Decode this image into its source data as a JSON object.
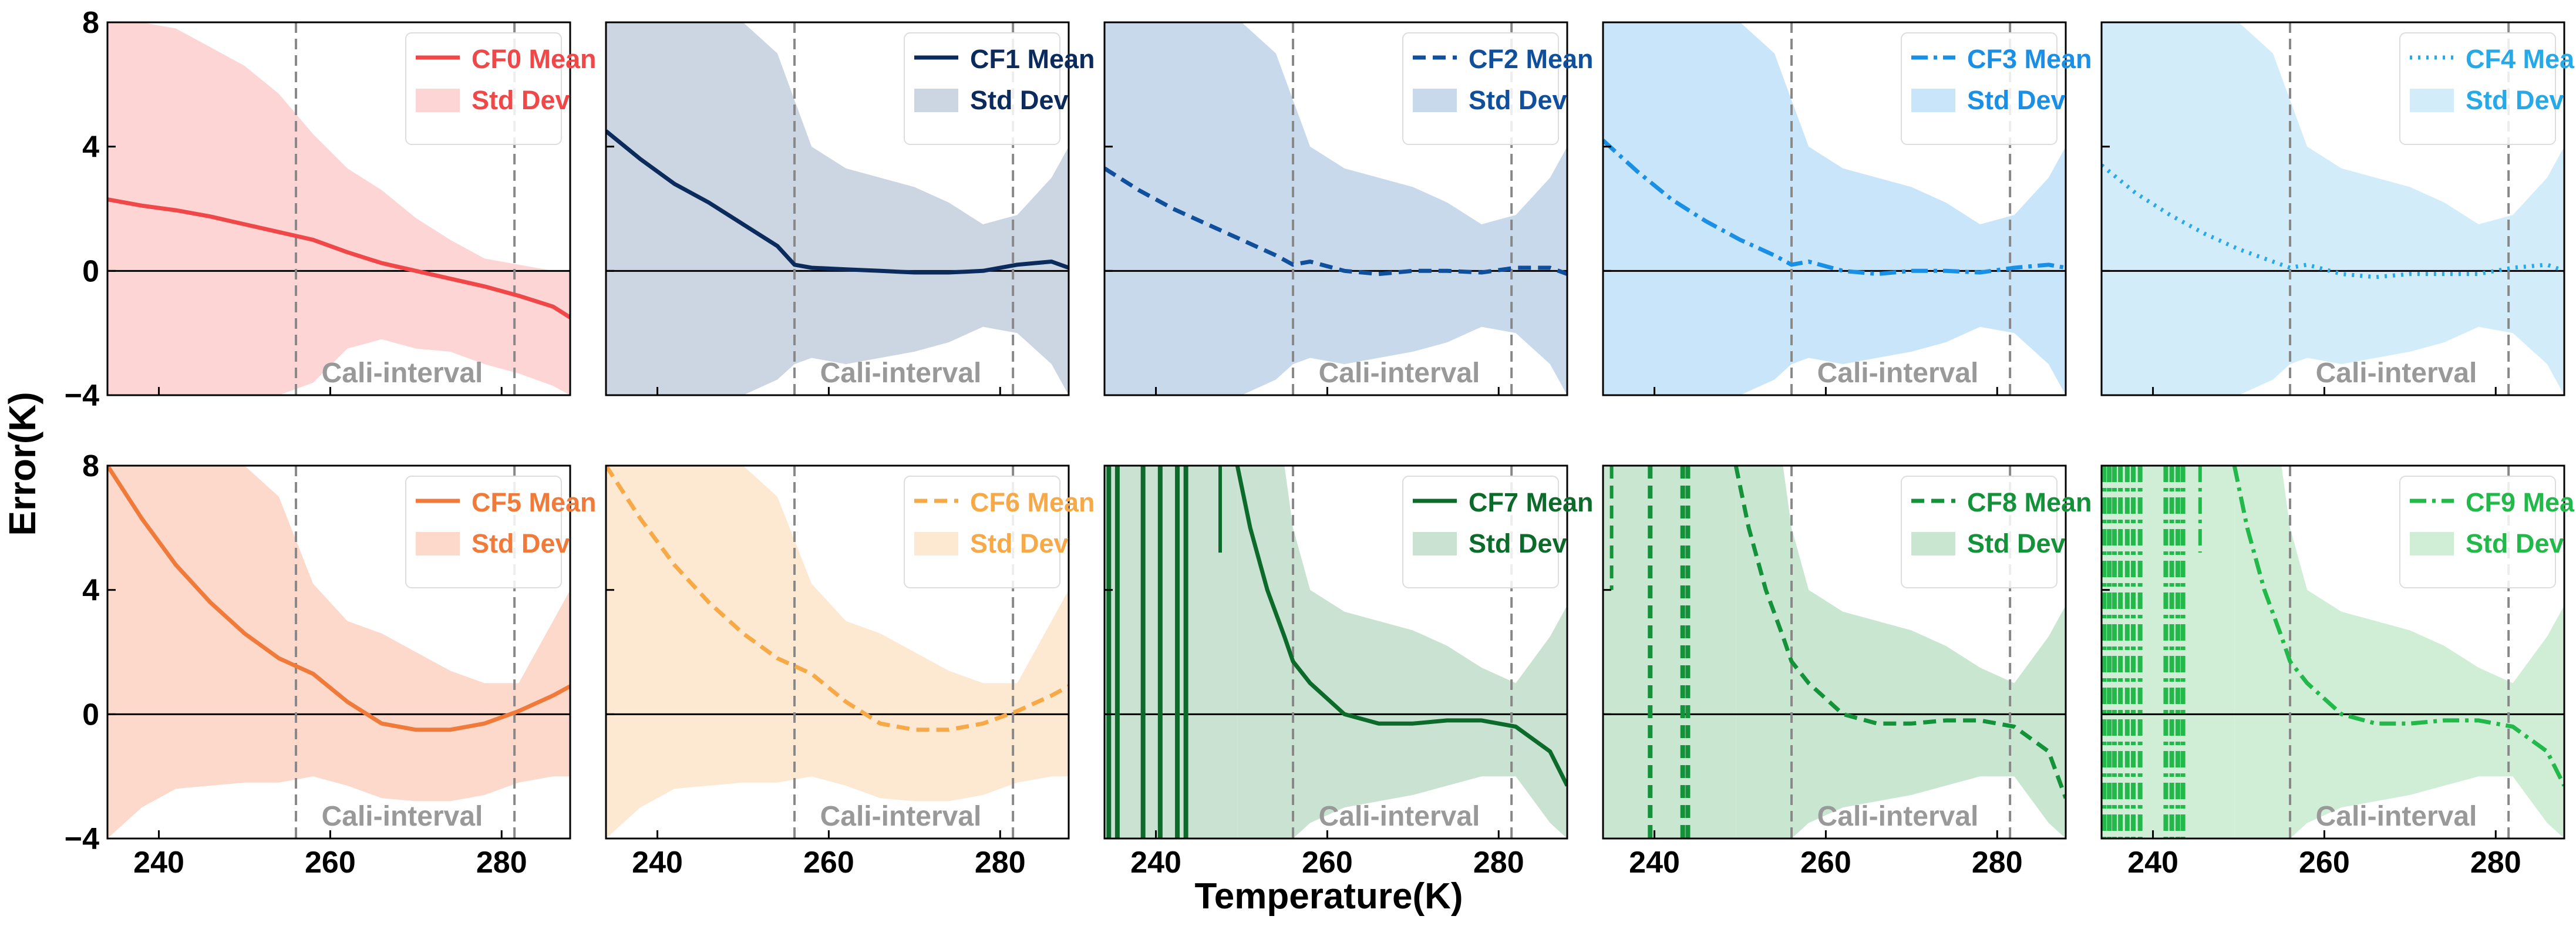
{
  "figure": {
    "ylabel": "Error(K)",
    "xlabel": "Temperature(K)",
    "shared_annotation": "Cali-interval",
    "x_ticks": [
      240,
      260,
      280
    ],
    "y_ticks": [
      -4,
      0,
      4,
      8
    ],
    "y_tick_labels": [
      "−4",
      "0",
      "4",
      "8"
    ],
    "calibration_interval": [
      256,
      281.5
    ]
  },
  "chart_data": [
    {
      "type": "line",
      "panel": "CF0",
      "color": "#f04848",
      "fill": "#fdd5d5",
      "dash": "solid",
      "legend": {
        "mean": "CF0 Mean",
        "std": "Std Dev"
      },
      "annotation": "Cali-interval",
      "xlim": [
        234,
        288
      ],
      "ylim": [
        -4,
        8
      ],
      "x": [
        234,
        238,
        242,
        246,
        250,
        254,
        258,
        262,
        266,
        270,
        274,
        278,
        282,
        286,
        288
      ],
      "mean": [
        2.3,
        2.1,
        1.95,
        1.75,
        1.5,
        1.25,
        1.0,
        0.6,
        0.25,
        0.0,
        -0.25,
        -0.5,
        -0.8,
        -1.15,
        -1.5
      ],
      "upper": [
        8.0,
        8.0,
        7.8,
        7.2,
        6.6,
        5.7,
        4.4,
        3.3,
        2.6,
        1.7,
        1.0,
        0.4,
        0.2,
        0.0,
        0.0
      ],
      "lower": [
        -4.0,
        -4.0,
        -4.0,
        -4.0,
        -4.0,
        -4.0,
        -3.6,
        -2.5,
        -2.2,
        -2.5,
        -2.6,
        -3.0,
        -3.3,
        -3.7,
        -4.0
      ]
    },
    {
      "type": "line",
      "panel": "CF1",
      "color": "#0b2b5c",
      "fill": "#ccd6e2",
      "dash": "solid",
      "legend": {
        "mean": "CF1 Mean",
        "std": "Std Dev"
      },
      "annotation": "Cali-interval",
      "xlim": [
        234,
        288
      ],
      "ylim": [
        -4,
        8
      ],
      "x": [
        234,
        238,
        242,
        246,
        250,
        254,
        256,
        258,
        262,
        266,
        270,
        274,
        278,
        282,
        286,
        288
      ],
      "mean": [
        4.5,
        3.6,
        2.8,
        2.2,
        1.5,
        0.8,
        0.2,
        0.1,
        0.05,
        0.0,
        -0.05,
        -0.05,
        0.0,
        0.2,
        0.3,
        0.1
      ],
      "upper": [
        8.0,
        8.0,
        8.0,
        8.0,
        8.0,
        7.0,
        5.5,
        4.0,
        3.3,
        3.0,
        2.7,
        2.2,
        1.5,
        1.8,
        3.0,
        4.0
      ],
      "lower": [
        -4.0,
        -4.0,
        -4.0,
        -4.0,
        -4.0,
        -3.5,
        -3.0,
        -2.8,
        -3.0,
        -2.8,
        -2.6,
        -2.3,
        -1.8,
        -2.0,
        -3.0,
        -4.0
      ]
    },
    {
      "type": "line",
      "panel": "CF2",
      "color": "#104f9c",
      "fill": "#c8d9ec",
      "dash": "22,12",
      "legend": {
        "mean": "CF2 Mean",
        "std": "Std Dev"
      },
      "annotation": "Cali-interval",
      "xlim": [
        234,
        288
      ],
      "ylim": [
        -4,
        8
      ],
      "x": [
        234,
        238,
        242,
        246,
        250,
        254,
        256,
        258,
        262,
        266,
        270,
        274,
        278,
        282,
        286,
        288
      ],
      "mean": [
        3.3,
        2.6,
        2.0,
        1.5,
        1.0,
        0.5,
        0.2,
        0.3,
        0.0,
        -0.1,
        0.0,
        0.0,
        -0.05,
        0.1,
        0.1,
        -0.1
      ],
      "upper": [
        8.0,
        8.0,
        8.0,
        8.0,
        8.0,
        7.0,
        5.5,
        4.0,
        3.3,
        3.0,
        2.7,
        2.2,
        1.5,
        1.8,
        3.0,
        4.0
      ],
      "lower": [
        -4.0,
        -4.0,
        -4.0,
        -4.0,
        -4.0,
        -3.5,
        -3.0,
        -2.8,
        -3.0,
        -2.8,
        -2.6,
        -2.3,
        -1.8,
        -2.0,
        -3.0,
        -4.0
      ]
    },
    {
      "type": "line",
      "panel": "CF3",
      "color": "#1a8fe6",
      "fill": "#c9e5fa",
      "dash": "28,10,6,10",
      "legend": {
        "mean": "CF3 Mean",
        "std": "Std Dev"
      },
      "annotation": "Cali-interval",
      "xlim": [
        234,
        288
      ],
      "ylim": [
        -4,
        8
      ],
      "x": [
        234,
        238,
        242,
        246,
        250,
        254,
        256,
        258,
        262,
        266,
        270,
        274,
        278,
        282,
        286,
        288
      ],
      "mean": [
        4.2,
        3.2,
        2.3,
        1.6,
        1.0,
        0.5,
        0.2,
        0.3,
        0.0,
        -0.1,
        0.0,
        0.0,
        -0.05,
        0.1,
        0.2,
        0.1
      ],
      "upper": [
        8.0,
        8.0,
        8.0,
        8.0,
        8.0,
        7.0,
        5.5,
        4.0,
        3.3,
        3.0,
        2.7,
        2.2,
        1.5,
        1.8,
        3.0,
        4.0
      ],
      "lower": [
        -4.0,
        -4.0,
        -4.0,
        -4.0,
        -4.0,
        -3.5,
        -3.0,
        -2.8,
        -3.0,
        -2.8,
        -2.6,
        -2.3,
        -1.8,
        -2.0,
        -3.0,
        -4.0
      ]
    },
    {
      "type": "line",
      "panel": "CF4",
      "color": "#27a9e8",
      "fill": "#d3ecfa",
      "dash": "4,10",
      "legend": {
        "mean": "CF4 Mean",
        "std": "Std Dev"
      },
      "annotation": "Cali-interval",
      "xlim": [
        234,
        288
      ],
      "ylim": [
        -4,
        8
      ],
      "x": [
        234,
        238,
        242,
        246,
        250,
        254,
        256,
        258,
        262,
        266,
        270,
        274,
        278,
        282,
        286,
        288
      ],
      "mean": [
        3.4,
        2.5,
        1.8,
        1.2,
        0.7,
        0.3,
        0.1,
        0.2,
        -0.1,
        -0.2,
        -0.1,
        -0.1,
        -0.1,
        0.1,
        0.2,
        0.0
      ],
      "upper": [
        8.0,
        8.0,
        8.0,
        8.0,
        8.0,
        7.0,
        5.5,
        4.0,
        3.3,
        3.0,
        2.7,
        2.2,
        1.5,
        1.8,
        3.0,
        4.0
      ],
      "lower": [
        -4.0,
        -4.0,
        -4.0,
        -4.0,
        -4.0,
        -3.5,
        -3.0,
        -2.8,
        -3.0,
        -2.8,
        -2.6,
        -2.3,
        -1.8,
        -2.0,
        -3.0,
        -4.0
      ]
    },
    {
      "type": "line",
      "panel": "CF5",
      "color": "#f07a3a",
      "fill": "#fdd9cc",
      "dash": "solid",
      "legend": {
        "mean": "CF5 Mean",
        "std": "Std Dev"
      },
      "annotation": "Cali-interval",
      "xlim": [
        234,
        288
      ],
      "ylim": [
        -4,
        8
      ],
      "x": [
        234,
        238,
        242,
        246,
        250,
        254,
        258,
        262,
        266,
        270,
        274,
        278,
        282,
        286,
        288
      ],
      "mean": [
        8.0,
        6.3,
        4.8,
        3.6,
        2.6,
        1.8,
        1.3,
        0.4,
        -0.3,
        -0.5,
        -0.5,
        -0.3,
        0.1,
        0.6,
        0.9
      ],
      "upper": [
        8.0,
        8.0,
        8.0,
        8.0,
        8.0,
        7.0,
        4.2,
        3.0,
        2.6,
        2.0,
        1.4,
        1.0,
        1.0,
        3.0,
        4.0
      ],
      "lower": [
        -4.0,
        -3.0,
        -2.4,
        -2.3,
        -2.2,
        -2.2,
        -2.0,
        -2.3,
        -2.7,
        -2.8,
        -2.8,
        -2.6,
        -2.2,
        -2.0,
        -2.0
      ]
    },
    {
      "type": "line",
      "panel": "CF6",
      "color": "#f7a947",
      "fill": "#fde8d2",
      "dash": "22,12",
      "legend": {
        "mean": "CF6 Mean",
        "std": "Std Dev"
      },
      "annotation": "Cali-interval",
      "xlim": [
        234,
        288
      ],
      "ylim": [
        -4,
        8
      ],
      "x": [
        234,
        238,
        242,
        246,
        250,
        254,
        258,
        262,
        266,
        270,
        274,
        278,
        282,
        286,
        288
      ],
      "mean": [
        8.0,
        6.3,
        4.8,
        3.6,
        2.6,
        1.8,
        1.3,
        0.4,
        -0.3,
        -0.5,
        -0.5,
        -0.3,
        0.1,
        0.6,
        0.9
      ],
      "upper": [
        8.0,
        8.0,
        8.0,
        8.0,
        8.0,
        7.0,
        4.2,
        3.0,
        2.6,
        2.0,
        1.4,
        1.0,
        1.0,
        3.0,
        4.0
      ],
      "lower": [
        -4.0,
        -3.0,
        -2.4,
        -2.3,
        -2.2,
        -2.2,
        -2.0,
        -2.3,
        -2.7,
        -2.8,
        -2.8,
        -2.6,
        -2.2,
        -2.0,
        -2.0
      ]
    },
    {
      "type": "line",
      "panel": "CF7",
      "color": "#0c6b2a",
      "fill": "#c9e2d1",
      "dash": "solid",
      "legend": {
        "mean": "CF7 Mean",
        "std": "Std Dev"
      },
      "annotation": "Cali-interval",
      "xlim": [
        234,
        288
      ],
      "ylim": [
        -4,
        8
      ],
      "spikes": [
        234.5,
        235.5,
        238.5,
        240.5,
        242.5,
        243.5
      ],
      "short_spike": {
        "x": 247.5,
        "top": 8.0,
        "bottom": 5.2
      },
      "x": [
        249.5,
        251,
        253,
        255,
        256,
        258,
        262,
        266,
        270,
        274,
        278,
        282,
        286,
        288
      ],
      "mean": [
        8.0,
        6.0,
        4.0,
        2.5,
        1.7,
        1.0,
        0.0,
        -0.3,
        -0.3,
        -0.2,
        -0.2,
        -0.4,
        -1.2,
        -2.3
      ],
      "upper": [
        8.0,
        8.0,
        8.0,
        8.0,
        6.0,
        4.0,
        3.3,
        3.0,
        2.7,
        2.2,
        1.5,
        1.0,
        2.5,
        3.5
      ],
      "lower": [
        -4.0,
        -4.0,
        -4.0,
        -4.0,
        -4.0,
        -3.5,
        -3.0,
        -2.8,
        -2.6,
        -2.3,
        -2.0,
        -2.0,
        -3.5,
        -4.0
      ]
    },
    {
      "type": "line",
      "panel": "CF8",
      "color": "#13923a",
      "fill": "#c9e6d0",
      "dash": "22,12",
      "legend": {
        "mean": "CF8 Mean",
        "std": "Std Dev"
      },
      "annotation": "Cali-interval",
      "xlim": [
        234,
        288
      ],
      "ylim": [
        -4,
        8
      ],
      "spikes": [
        239.5,
        243.3,
        243.9
      ],
      "short_spike": {
        "x": 235.0,
        "top": 8.0,
        "bottom": 4.0
      },
      "x": [
        249.5,
        251,
        253,
        255,
        256,
        258,
        262,
        266,
        270,
        274,
        278,
        282,
        286,
        288
      ],
      "mean": [
        8.0,
        6.0,
        4.0,
        2.5,
        1.7,
        1.0,
        0.0,
        -0.3,
        -0.3,
        -0.2,
        -0.2,
        -0.4,
        -1.2,
        -2.7
      ],
      "upper": [
        8.0,
        8.0,
        8.0,
        8.0,
        6.0,
        4.0,
        3.3,
        3.0,
        2.7,
        2.2,
        1.5,
        1.0,
        2.5,
        3.5
      ],
      "lower": [
        -4.0,
        -4.0,
        -4.0,
        -4.0,
        -4.0,
        -3.5,
        -3.0,
        -2.8,
        -2.6,
        -2.3,
        -2.0,
        -2.0,
        -3.5,
        -4.0
      ]
    },
    {
      "type": "line",
      "panel": "CF9",
      "color": "#22b84a",
      "fill": "#d0eed6",
      "dash": "28,10,6,10",
      "legend": {
        "mean": "CF9 Mean",
        "std": "Std Dev"
      },
      "annotation": "Cali-interval",
      "xlim": [
        234,
        288
      ],
      "ylim": [
        -4,
        8
      ],
      "spikes": [
        234.3,
        234.9,
        235.5,
        236.2,
        237.0,
        237.7,
        238.5,
        241.5,
        242.2,
        242.9,
        243.5
      ],
      "short_spike": {
        "x": 245.5,
        "top": 8.0,
        "bottom": 5.2
      },
      "x": [
        249.5,
        251,
        253,
        255,
        256,
        258,
        262,
        266,
        270,
        274,
        278,
        282,
        286,
        288
      ],
      "mean": [
        8.0,
        6.0,
        4.0,
        2.5,
        1.7,
        1.0,
        0.0,
        -0.3,
        -0.3,
        -0.2,
        -0.2,
        -0.4,
        -1.2,
        -2.3
      ],
      "upper": [
        8.0,
        8.0,
        8.0,
        8.0,
        6.0,
        4.0,
        3.3,
        3.0,
        2.7,
        2.2,
        1.5,
        1.0,
        2.5,
        3.5
      ],
      "lower": [
        -4.0,
        -4.0,
        -4.0,
        -4.0,
        -4.0,
        -3.5,
        -3.0,
        -2.8,
        -2.6,
        -2.3,
        -2.0,
        -2.0,
        -3.5,
        -4.0
      ]
    }
  ]
}
